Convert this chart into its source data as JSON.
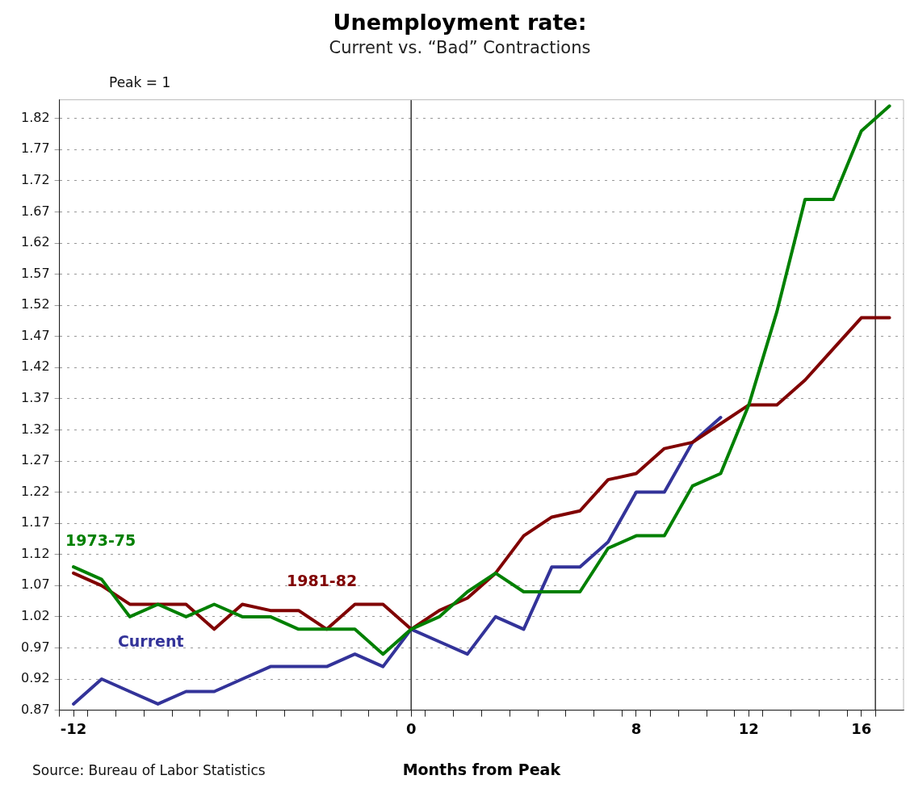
{
  "chart_data": {
    "type": "line",
    "title": "Unemployment rate:",
    "subtitle": "Current vs. “Bad” Contractions",
    "xlabel": "Months from Peak",
    "ylabel": "Peak = 1",
    "annotations": [
      "Source: Bureau of Labor Statistics"
    ],
    "x": [
      -12,
      -11,
      -10,
      -9,
      -8,
      -7,
      -6,
      -5,
      -4,
      -3,
      -2,
      -1,
      0,
      1,
      2,
      3,
      4,
      5,
      6,
      7,
      8,
      9,
      10,
      11,
      12,
      13,
      14,
      15,
      16,
      17
    ],
    "series": [
      {
        "name": "1973-75",
        "color": "#008000",
        "values": [
          1.1,
          1.08,
          1.02,
          1.04,
          1.02,
          1.04,
          1.02,
          1.02,
          1.0,
          1.0,
          1.0,
          0.96,
          1.0,
          1.02,
          1.06,
          1.09,
          1.06,
          1.06,
          1.06,
          1.13,
          1.15,
          1.15,
          1.23,
          1.25,
          1.36,
          1.51,
          1.69,
          1.69,
          1.8,
          1.84
        ]
      },
      {
        "name": "1981-82",
        "color": "#800000",
        "values": [
          1.09,
          1.07,
          1.04,
          1.04,
          1.04,
          1.0,
          1.04,
          1.03,
          1.03,
          1.0,
          1.04,
          1.04,
          1.0,
          1.03,
          1.05,
          1.09,
          1.15,
          1.18,
          1.19,
          1.24,
          1.25,
          1.29,
          1.3,
          1.33,
          1.36,
          1.36,
          1.4,
          1.45,
          1.5,
          1.5
        ]
      },
      {
        "name": "Current",
        "color": "#333399",
        "values": [
          0.88,
          0.92,
          0.9,
          0.88,
          0.9,
          0.9,
          0.92,
          0.94,
          0.94,
          0.94,
          0.96,
          0.94,
          1.0,
          0.98,
          0.96,
          1.02,
          1.0,
          1.1,
          1.1,
          1.14,
          1.22,
          1.22,
          1.3,
          1.34,
          null,
          null,
          null,
          null,
          null,
          null
        ]
      }
    ],
    "xlim": [
      -12.5,
      17.5
    ],
    "xticks": [
      {
        "value": -12.5,
        "label": null
      },
      -12,
      {
        "value": -11.5,
        "label": null
      },
      {
        "value": -10.5,
        "label": null
      },
      {
        "value": -9.5,
        "label": null
      },
      {
        "value": -8.5,
        "label": null
      },
      {
        "value": -7.5,
        "label": null
      },
      {
        "value": -6.5,
        "label": null
      },
      {
        "value": -5.5,
        "label": null
      },
      {
        "value": -4.5,
        "label": null
      },
      {
        "value": -3.5,
        "label": null
      },
      {
        "value": -2.5,
        "label": null
      },
      {
        "value": -1.5,
        "label": null
      },
      {
        "value": -0.5,
        "label": null
      },
      0,
      {
        "value": 0.5,
        "label": null
      },
      {
        "value": 1.5,
        "label": null
      },
      {
        "value": 2.5,
        "label": null
      },
      {
        "value": 3.5,
        "label": null
      },
      {
        "value": 4.5,
        "label": null
      },
      {
        "value": 5.5,
        "label": null
      },
      {
        "value": 6.5,
        "label": null
      },
      {
        "value": 7.5,
        "label": null
      },
      8,
      {
        "value": 8.5,
        "label": null
      },
      {
        "value": 9.5,
        "label": null
      },
      {
        "value": 10.5,
        "label": null
      },
      {
        "value": 11.5,
        "label": null
      },
      12,
      {
        "value": 12.5,
        "label": null
      },
      {
        "value": 13.5,
        "label": null
      },
      {
        "value": 14.5,
        "label": null
      },
      {
        "value": 15.5,
        "label": null
      },
      16,
      {
        "value": 16.5,
        "label": null
      }
    ],
    "ylim": [
      0.87,
      1.85
    ],
    "yticks": [
      0.87,
      0.92,
      0.97,
      1.02,
      1.07,
      1.12,
      1.17,
      1.22,
      1.27,
      1.32,
      1.37,
      1.42,
      1.47,
      1.52,
      1.57,
      1.62,
      1.67,
      1.72,
      1.77,
      1.82
    ],
    "ref_lines": [
      {
        "axis": "x",
        "value": 0,
        "color": "#333333"
      },
      {
        "axis": "x",
        "value": 16.5,
        "color": "#333333"
      }
    ],
    "grid": "y",
    "legend": false,
    "marker": "none",
    "line_style": "solid"
  }
}
